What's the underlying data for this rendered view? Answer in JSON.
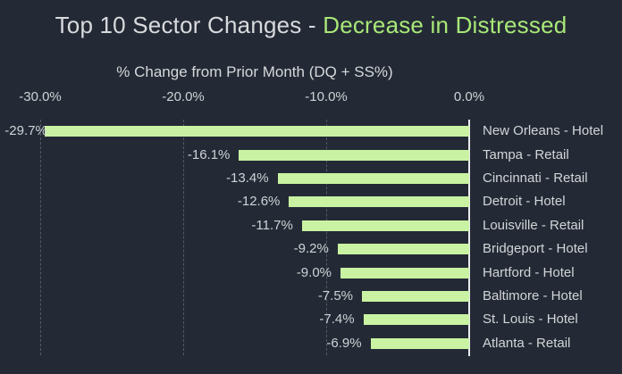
{
  "title": {
    "prefix": "Top 10 Sector Changes - ",
    "accent": "Decrease in Distressed"
  },
  "colors": {
    "background": "#242a35",
    "bar": "#c9f3a2",
    "title_text": "#d8dadd",
    "title_accent": "#a8e878",
    "label_text": "#ced2d7",
    "gridline": "#545a64",
    "axis_line": "#e9ebee"
  },
  "chart_data": {
    "type": "bar",
    "orientation": "horizontal",
    "title": "Top 10 Sector Changes - Decrease in Distressed",
    "xlabel": "% Change from Prior Month (DQ + SS%)",
    "xlim": [
      -30,
      0
    ],
    "xticks": [
      -30,
      -20,
      -10,
      0
    ],
    "xtick_labels": [
      "-30.0%",
      "-20.0%",
      "-10.0%",
      "0.0%"
    ],
    "grid": "vertical-dashed",
    "legend": "none",
    "categories": [
      "New Orleans - Hotel",
      "Tampa - Retail",
      "Cincinnati - Retail",
      "Detroit - Hotel",
      "Louisville - Retail",
      "Bridgeport - Hotel",
      "Hartford - Hotel",
      "Baltimore - Hotel",
      "St. Louis - Hotel",
      "Atlanta - Retail"
    ],
    "values": [
      -29.7,
      -16.1,
      -13.4,
      -12.6,
      -11.7,
      -9.2,
      -9.0,
      -7.5,
      -7.4,
      -6.9
    ],
    "value_labels": [
      "-29.7%",
      "-16.1%",
      "-13.4%",
      "-12.6%",
      "-11.7%",
      "-9.2%",
      "-9.0%",
      "-7.5%",
      "-7.4%",
      "-6.9%"
    ],
    "bar_color": "#c9f3a2"
  }
}
